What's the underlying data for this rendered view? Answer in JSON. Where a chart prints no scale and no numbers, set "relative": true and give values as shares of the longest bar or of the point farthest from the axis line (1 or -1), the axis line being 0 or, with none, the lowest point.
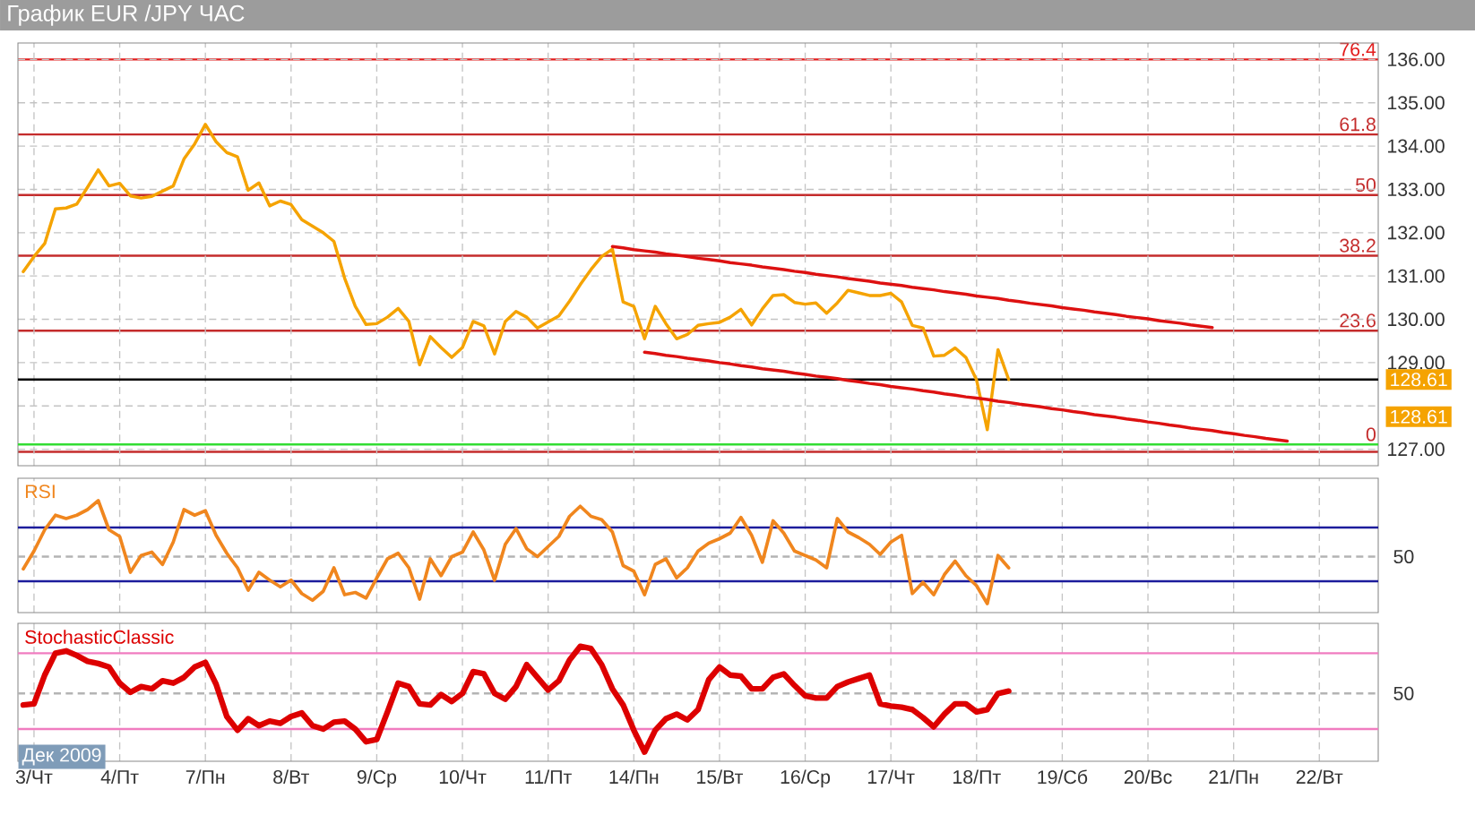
{
  "chart_data": [
    {
      "type": "line",
      "title": "График EUR /JPY ЧАС",
      "categories": [
        null,
        null,
        null,
        null,
        null,
        null,
        null,
        null,
        null,
        null,
        null,
        null,
        null,
        null,
        null,
        null,
        null,
        null,
        null,
        null,
        null,
        null,
        null,
        null,
        null,
        null,
        null,
        null,
        null,
        null,
        null,
        null,
        null,
        null,
        null,
        null,
        null,
        null,
        null,
        null,
        null,
        null,
        null,
        null,
        null,
        null,
        null,
        null,
        null,
        null,
        null,
        null,
        null,
        null,
        null,
        null,
        null,
        null,
        null,
        null,
        null,
        null,
        null,
        null,
        null,
        null,
        null,
        null,
        null,
        null,
        null,
        null,
        null,
        null,
        null,
        null,
        null,
        null,
        null,
        null,
        null,
        null,
        null,
        null,
        null,
        null,
        null,
        null,
        null,
        null,
        null,
        null,
        null,
        null,
        null,
        null,
        null,
        null,
        null,
        null,
        null,
        null,
        null,
        null,
        null,
        null,
        null,
        null,
        null,
        null,
        null,
        null,
        null,
        null,
        null,
        null,
        null,
        null,
        null,
        null,
        null,
        null,
        null,
        null,
        null,
        null,
        null
      ],
      "series": [
        {
          "color": "#f5a300",
          "values": [
            131.1,
            131.45,
            131.75,
            132.55,
            132.57,
            132.66,
            133.05,
            133.45,
            133.08,
            133.14,
            132.85,
            132.8,
            132.84,
            132.96,
            133.08,
            133.7,
            134.05,
            134.5,
            134.1,
            133.85,
            133.75,
            132.98,
            133.15,
            132.62,
            132.73,
            132.65,
            132.3,
            132.15,
            132.0,
            131.8,
            130.95,
            130.3,
            129.88,
            129.9,
            130.05,
            130.25,
            129.95,
            128.95,
            129.6,
            129.35,
            129.12,
            129.35,
            129.95,
            129.85,
            129.2,
            129.95,
            130.18,
            130.05,
            129.8,
            129.94,
            130.08,
            130.42,
            130.8,
            131.15,
            131.45,
            131.62,
            130.4,
            130.3,
            129.55,
            130.3,
            129.9,
            129.55,
            129.65,
            129.86,
            129.9,
            129.93,
            130.05,
            130.23,
            129.87,
            130.24,
            130.55,
            130.57,
            130.39,
            130.35,
            130.38,
            130.14,
            130.38,
            130.67,
            130.61,
            130.55,
            130.55,
            130.6,
            130.4,
            129.86,
            129.8,
            129.15,
            129.17,
            129.34,
            129.12,
            128.6,
            127.45,
            129.3,
            128.61,
            null,
            null,
            null,
            null,
            null,
            null,
            null,
            null,
            null,
            null,
            null,
            null,
            null,
            null,
            null,
            null,
            null,
            null,
            null,
            null,
            null,
            null,
            null,
            null,
            null,
            null,
            null,
            null,
            null,
            null,
            null,
            null,
            null,
            null
          ]
        },
        {
          "type": "line",
          "color": "#dd1111",
          "values": [
            null,
            null,
            null,
            null,
            null,
            null,
            null,
            null,
            null,
            null,
            null,
            null,
            null,
            null,
            null,
            null,
            null,
            null,
            null,
            null,
            null,
            null,
            null,
            null,
            null,
            null,
            null,
            null,
            null,
            null,
            null,
            null,
            null,
            null,
            null,
            null,
            null,
            null,
            null,
            null,
            null,
            null,
            null,
            null,
            null,
            null,
            null,
            null,
            null,
            null,
            null,
            null,
            null,
            null,
            null,
            131.68,
            131.65,
            131.61,
            131.58,
            131.55,
            131.51,
            131.48,
            131.45,
            131.41,
            131.38,
            131.35,
            131.31,
            131.28,
            131.25,
            131.21,
            131.18,
            131.15,
            131.11,
            131.08,
            131.04,
            131.01,
            130.98,
            130.94,
            130.91,
            130.88,
            130.84,
            130.81,
            130.78,
            130.74,
            130.71,
            130.68,
            130.64,
            130.61,
            130.58,
            130.54,
            130.51,
            130.48,
            130.44,
            130.41,
            130.37,
            130.34,
            130.31,
            130.27,
            130.24,
            130.21,
            130.17,
            130.14,
            130.11,
            130.07,
            130.04,
            130.01,
            129.97,
            129.94,
            129.91,
            129.87,
            129.84,
            129.81,
            null,
            null,
            null,
            null,
            null,
            null,
            null,
            null,
            null,
            null,
            null,
            null,
            null,
            null,
            null
          ]
        },
        {
          "type": "line",
          "color": "#dd1111",
          "values": [
            null,
            null,
            null,
            null,
            null,
            null,
            null,
            null,
            null,
            null,
            null,
            null,
            null,
            null,
            null,
            null,
            null,
            null,
            null,
            null,
            null,
            null,
            null,
            null,
            null,
            null,
            null,
            null,
            null,
            null,
            null,
            null,
            null,
            null,
            null,
            null,
            null,
            null,
            null,
            null,
            null,
            null,
            null,
            null,
            null,
            null,
            null,
            null,
            null,
            null,
            null,
            null,
            null,
            null,
            null,
            null,
            null,
            null,
            129.24,
            129.21,
            129.17,
            129.14,
            129.1,
            129.07,
            129.04,
            129.0,
            128.97,
            128.93,
            128.9,
            128.86,
            128.83,
            128.8,
            128.76,
            128.73,
            128.69,
            128.66,
            128.63,
            128.59,
            128.56,
            128.52,
            128.49,
            128.45,
            128.42,
            128.39,
            128.35,
            128.32,
            128.28,
            128.25,
            128.21,
            128.18,
            128.15,
            128.11,
            128.08,
            128.04,
            128.01,
            127.98,
            127.94,
            127.91,
            127.87,
            127.84,
            127.8,
            127.77,
            127.74,
            127.7,
            127.67,
            127.63,
            127.6,
            127.56,
            127.53,
            127.49,
            127.46,
            127.43,
            127.39,
            127.36,
            127.32,
            127.29,
            127.25,
            127.22,
            127.19,
            null,
            null,
            null,
            null,
            null,
            null,
            null,
            null
          ]
        }
      ],
      "ylim": [
        126.62,
        136.38
      ],
      "yticks": [
        {
          "value": 127,
          "label": "127.00"
        },
        {
          "value": 128,
          "label": null
        },
        {
          "value": 129,
          "label": "129.00"
        },
        {
          "value": 130,
          "label": "130.00"
        },
        {
          "value": 131,
          "label": "131.00"
        },
        {
          "value": 132,
          "label": "132.00"
        },
        {
          "value": 133,
          "label": "133.00"
        },
        {
          "value": 134,
          "label": "134.00"
        },
        {
          "value": 135,
          "label": "135.00"
        },
        {
          "value": 136,
          "label": "136.00"
        }
      ],
      "y2lim": [
        -2.7,
        79.6
      ],
      "ref_lines": [
        {
          "axis": "y2",
          "value": 76.4,
          "label": "76.4",
          "color": "#e31b1b"
        },
        {
          "axis": "y2",
          "value": 61.8,
          "label": "61.8",
          "color": "#c42b2b"
        },
        {
          "axis": "y2",
          "value": 50,
          "label": "50",
          "color": "#c42b2b"
        },
        {
          "axis": "y2",
          "value": 38.2,
          "label": "38.2",
          "color": "#c42b2b"
        },
        {
          "axis": "y2",
          "value": 23.6,
          "label": "23.6",
          "color": "#c42b2b"
        },
        {
          "axis": "y2",
          "value": 0,
          "label": "0",
          "color": "#c42b2b"
        },
        {
          "axis": "y",
          "value": 127.11,
          "color": "#33dd33"
        },
        {
          "axis": "y",
          "value": 128.61,
          "label": "128.61",
          "color": "#000000"
        }
      ],
      "annotations": [
        "128.61"
      ],
      "grid": true,
      "tick_labels": "y"
    },
    {
      "type": "line",
      "title": "RSI",
      "relative": true,
      "categories": [
        null,
        null,
        null,
        null,
        null,
        null,
        null,
        null,
        null,
        null,
        null,
        null,
        null,
        null,
        null,
        null,
        null,
        null,
        null,
        null,
        null,
        null,
        null,
        null,
        null,
        null,
        null,
        null,
        null,
        null,
        null,
        null,
        null,
        null,
        null,
        null,
        null,
        null,
        null,
        null,
        null,
        null,
        null,
        null,
        null,
        null,
        null,
        null,
        null,
        null,
        null,
        null,
        null,
        null,
        null,
        null,
        null,
        null,
        null,
        null,
        null,
        null,
        null,
        null,
        null,
        null,
        null,
        null,
        null,
        null,
        null,
        null,
        null,
        null,
        null,
        null,
        null,
        null,
        null,
        null,
        null,
        null,
        null,
        null,
        null,
        null,
        null,
        null,
        null,
        null,
        null,
        null,
        null,
        null,
        null,
        null,
        null,
        null,
        null,
        null,
        null,
        null,
        null,
        null,
        null,
        null,
        null,
        null,
        null,
        null,
        null,
        null,
        null,
        null,
        null,
        null,
        null,
        null,
        null,
        null,
        null,
        null,
        null,
        null,
        null,
        null,
        null
      ],
      "series": [
        {
          "color": "#f0861e",
          "values": [
            0.39,
            0.55,
            0.74,
            0.87,
            0.84,
            0.87,
            0.92,
            1.0,
            0.74,
            0.68,
            0.36,
            0.51,
            0.54,
            0.43,
            0.63,
            0.92,
            0.87,
            0.91,
            0.69,
            0.53,
            0.4,
            0.2,
            0.36,
            0.29,
            0.23,
            0.29,
            0.17,
            0.11,
            0.19,
            0.4,
            0.16,
            0.18,
            0.13,
            0.31,
            0.48,
            0.53,
            0.4,
            0.12,
            0.48,
            0.33,
            0.5,
            0.54,
            0.72,
            0.56,
            0.29,
            0.61,
            0.75,
            0.57,
            0.5,
            0.59,
            0.68,
            0.86,
            0.95,
            0.86,
            0.83,
            0.72,
            0.42,
            0.37,
            0.16,
            0.43,
            0.48,
            0.31,
            0.4,
            0.55,
            0.62,
            0.66,
            0.71,
            0.85,
            0.69,
            0.45,
            0.82,
            0.71,
            0.55,
            0.51,
            0.47,
            0.4,
            0.84,
            0.72,
            0.67,
            0.61,
            0.52,
            0.63,
            0.69,
            0.17,
            0.27,
            0.16,
            0.34,
            0.46,
            0.33,
            0.24,
            0.08,
            0.51,
            0.4,
            null,
            null,
            null,
            null,
            null,
            null,
            null,
            null,
            null,
            null,
            null,
            null,
            null,
            null,
            null,
            null,
            null,
            null,
            null,
            null,
            null,
            null,
            null,
            null,
            null,
            null,
            null,
            null,
            null,
            null,
            null,
            null,
            null,
            null
          ]
        }
      ],
      "ref_lines": [
        {
          "axis": "y",
          "value": 0.76,
          "color": "#1c1c9c"
        },
        {
          "axis": "y",
          "value": 0.28,
          "color": "#1c1c9c"
        },
        {
          "axis": "y",
          "value": 0.5,
          "color": "#b4b4b4",
          "line_style": "dashed"
        }
      ],
      "annotations": [
        "50"
      ],
      "grid": "x",
      "tick_labels": false
    },
    {
      "type": "line",
      "title": "StochasticClassic",
      "relative": true,
      "categories": [
        null,
        "3/Чт",
        null,
        null,
        null,
        null,
        null,
        null,
        null,
        "4/Пт",
        null,
        null,
        null,
        null,
        null,
        null,
        null,
        "7/Пн",
        null,
        null,
        null,
        null,
        null,
        null,
        null,
        "8/Вт",
        null,
        null,
        null,
        null,
        null,
        null,
        null,
        "9/Ср",
        null,
        null,
        null,
        null,
        null,
        null,
        null,
        "10/Чт",
        null,
        null,
        null,
        null,
        null,
        null,
        null,
        "11/Пт",
        null,
        null,
        null,
        null,
        null,
        null,
        null,
        "14/Пн",
        null,
        null,
        null,
        null,
        null,
        null,
        null,
        "15/Вт",
        null,
        null,
        null,
        null,
        null,
        null,
        null,
        "16/Ср",
        null,
        null,
        null,
        null,
        null,
        null,
        null,
        "17/Чт",
        null,
        null,
        null,
        null,
        null,
        null,
        null,
        "18/Пт",
        null,
        null,
        null,
        null,
        null,
        null,
        null,
        "19/Сб",
        null,
        null,
        null,
        null,
        null,
        null,
        null,
        "20/Вс",
        null,
        null,
        null,
        null,
        null,
        null,
        null,
        "21/Пн",
        null,
        null,
        null,
        null,
        null,
        null,
        null,
        "22/Вт",
        null,
        null,
        null,
        null,
        null
      ],
      "series": [
        {
          "color": "#dd0000",
          "values": [
            0.49,
            0.5,
            0.75,
            0.94,
            0.96,
            0.92,
            0.87,
            0.85,
            0.82,
            0.68,
            0.6,
            0.65,
            0.63,
            0.7,
            0.68,
            0.73,
            0.82,
            0.86,
            0.67,
            0.39,
            0.27,
            0.37,
            0.31,
            0.35,
            0.33,
            0.39,
            0.42,
            0.31,
            0.28,
            0.34,
            0.35,
            0.28,
            0.17,
            0.19,
            0.43,
            0.68,
            0.65,
            0.5,
            0.49,
            0.58,
            0.52,
            0.59,
            0.78,
            0.76,
            0.59,
            0.54,
            0.65,
            0.84,
            0.73,
            0.62,
            0.7,
            0.88,
            1.0,
            0.98,
            0.84,
            0.63,
            0.49,
            0.27,
            0.08,
            0.27,
            0.37,
            0.41,
            0.36,
            0.45,
            0.71,
            0.82,
            0.75,
            0.74,
            0.63,
            0.63,
            0.73,
            0.76,
            0.66,
            0.57,
            0.55,
            0.55,
            0.65,
            0.69,
            0.72,
            0.75,
            0.5,
            0.48,
            0.47,
            0.45,
            0.38,
            0.3,
            0.41,
            0.5,
            0.5,
            0.43,
            0.45,
            0.59,
            0.61,
            null,
            null,
            null,
            null,
            null,
            null,
            null,
            null,
            null,
            null,
            null,
            null,
            null,
            null,
            null,
            null,
            null,
            null,
            null,
            null,
            null,
            null,
            null,
            null,
            null,
            null,
            null,
            null,
            null,
            null,
            null,
            null,
            null,
            null
          ]
        }
      ],
      "ref_lines": [
        {
          "axis": "y",
          "value": 0.94,
          "color": "#f07cc0"
        },
        {
          "axis": "y",
          "value": 0.28,
          "color": "#f07cc0"
        },
        {
          "axis": "y",
          "value": 0.59,
          "color": "#b4b4b4",
          "line_style": "dashed"
        }
      ],
      "annotations": [
        "50",
        "Дек 2009"
      ],
      "grid": "x",
      "tick_labels": "x"
    }
  ]
}
